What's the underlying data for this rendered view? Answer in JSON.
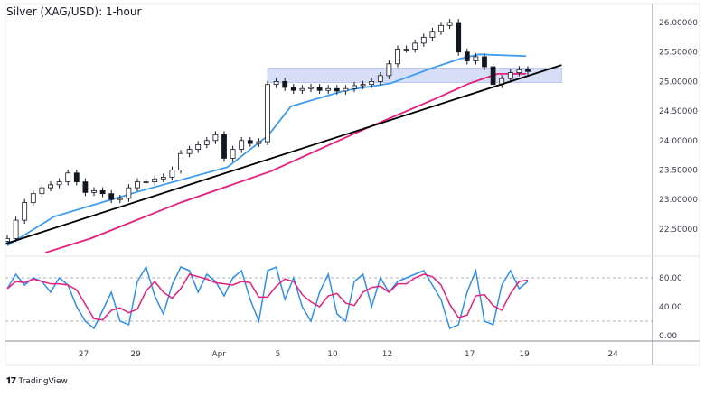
{
  "title": "Silver (XAG/USD): 1-hour",
  "brand": {
    "logo": "TV",
    "name": "TradingView"
  },
  "colors": {
    "up": "#131722",
    "down": "#131722",
    "ma_fast": "#3d9bf0",
    "ma_slow": "#e91e7a",
    "trendline": "#000000",
    "zone": "#c9d4f5",
    "stoch_k": "#2f8ff0",
    "stoch_d": "#e91e7a"
  },
  "chart_data": [
    {
      "type": "candlestick",
      "title": "Silver (XAG/USD): 1-hour",
      "ylim": [
        22.25,
        26.4
      ],
      "y_ticks": [
        "26.00000",
        "25.50000",
        "25.00000",
        "24.50000",
        "24.00000",
        "23.50000",
        "23.00000",
        "22.50000"
      ],
      "y_tick_values": [
        26.0,
        25.5,
        25.0,
        24.5,
        24.0,
        23.5,
        23.0,
        22.5
      ],
      "x_ticks": [
        {
          "label": "27",
          "bar": 8.8
        },
        {
          "label": "29",
          "bar": 14.8
        },
        {
          "label": "Apr",
          "bar": 24.4
        },
        {
          "label": "5",
          "bar": 31.2
        },
        {
          "label": "10",
          "bar": 37.5
        },
        {
          "label": "12",
          "bar": 43.8
        },
        {
          "label": "17",
          "bar": 53.3
        },
        {
          "label": "19",
          "bar": 59.6
        },
        {
          "label": "24",
          "bar": 69.8
        }
      ],
      "closes": [
        22.34,
        22.65,
        22.95,
        23.1,
        23.2,
        23.25,
        23.3,
        23.45,
        23.3,
        23.12,
        23.15,
        23.1,
        23.0,
        23.02,
        23.2,
        23.3,
        23.3,
        23.35,
        23.38,
        23.5,
        23.78,
        23.85,
        23.93,
        24.0,
        24.1,
        23.7,
        23.85,
        24.0,
        23.95,
        23.98,
        24.95,
        25.0,
        24.9,
        24.85,
        24.88,
        24.9,
        24.85,
        24.88,
        24.84,
        24.88,
        24.93,
        24.95,
        25.0,
        25.1,
        25.3,
        25.55,
        25.55,
        25.65,
        25.75,
        25.85,
        25.95,
        26.0,
        25.5,
        25.35,
        25.42,
        25.25,
        24.95,
        25.05,
        25.15,
        25.2,
        25.17
      ],
      "ma_fast": [
        [
          0,
          22.22
        ],
        [
          5.4,
          22.71
        ],
        [
          15,
          23.13
        ],
        [
          25.4,
          23.55
        ],
        [
          30.1,
          24.09
        ],
        [
          32.7,
          24.58
        ],
        [
          39,
          24.85
        ],
        [
          44.2,
          24.97
        ],
        [
          49.2,
          25.24
        ],
        [
          52.3,
          25.39
        ],
        [
          54.4,
          25.46
        ],
        [
          59.8,
          25.43
        ]
      ],
      "ma_slow": [
        [
          4.4,
          22.1
        ],
        [
          9.6,
          22.34
        ],
        [
          20,
          22.95
        ],
        [
          30.4,
          23.48
        ],
        [
          40.8,
          24.17
        ],
        [
          49.2,
          24.7
        ],
        [
          53.3,
          24.97
        ],
        [
          56.5,
          25.13
        ],
        [
          59.8,
          25.13
        ]
      ],
      "trendline": [
        [
          -0.2,
          22.25
        ],
        [
          63.9,
          25.28
        ]
      ],
      "zone": {
        "bar_start": 30,
        "bar_end": 63.9,
        "top": 25.23,
        "bottom": 24.98
      }
    },
    {
      "type": "line",
      "ylim": [
        0,
        100
      ],
      "y_ticks": [
        "80.00",
        "40.00",
        "0.00"
      ],
      "y_tick_values": [
        80,
        40,
        0
      ],
      "levels": [
        80,
        20
      ],
      "stoch_k": [
        65,
        85,
        70,
        80,
        75,
        60,
        80,
        70,
        40,
        20,
        10,
        35,
        60,
        20,
        15,
        75,
        95,
        55,
        30,
        70,
        95,
        90,
        60,
        85,
        75,
        55,
        80,
        90,
        50,
        20,
        90,
        95,
        50,
        80,
        40,
        20,
        60,
        85,
        30,
        20,
        75,
        85,
        40,
        80,
        60,
        75,
        80,
        85,
        90,
        70,
        50,
        10,
        15,
        60,
        90,
        20,
        15,
        70,
        90,
        65,
        75
      ]
    }
  ]
}
